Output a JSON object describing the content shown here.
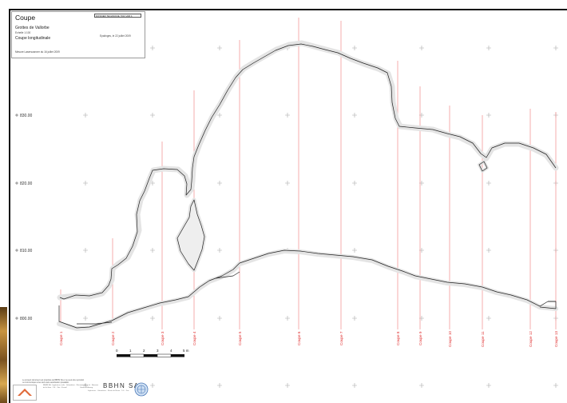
{
  "title_block": {
    "title": "Coupe",
    "site": "Grottes de Vallorbe",
    "scale": "Echelle 1:100",
    "view": "Coupe longitudinale",
    "date": "Epalinges, le 22 juillet 2009",
    "survey": "Mesure Laserscanner du 16 juillet 2009",
    "reference": "DOSSIER TECHNIQUE   7013 VAR 4"
  },
  "elevations": [
    "830.00",
    "820.00",
    "810.00",
    "800.00"
  ],
  "sections": [
    "Coupe 1",
    "Coupe 2",
    "Coupe 3",
    "Coupe 4",
    "Coupe 5",
    "Coupe 6",
    "Coupe 7",
    "Coupe 8",
    "Coupe 9",
    "Coupe 10",
    "Coupe 11",
    "Coupe 12",
    "Coupe 13"
  ],
  "scale_bar": {
    "ticks": [
      "0",
      "1",
      "2",
      "3",
      "4"
    ],
    "last_tick": "5 m"
  },
  "footer": {
    "note": "Le présent document est propriété de BBHN SA et ne peut être reproduit ou communiqué à des tiers sans autorisation préalable.",
    "office_info": "BBHN SA · Ingénieurs civils · Géomètres · Rue de la Gare · Tél. · Fax · E-mail",
    "office_info_b": "www.bbhn.ch · Bureaux Vaud et Fribourg",
    "company": "BBHN SA",
    "company_address": "Ingénieurs · Géomètres · Route de Berne · Tél. · Fax"
  },
  "colors": {
    "cave_outline": "#222222",
    "cave_scan_halo": "#e4e4e4",
    "section_line": "#f08a8a",
    "section_label": "#e03030",
    "grid_cross": "#a8a8a8"
  },
  "icons": [
    "company-logo-icon",
    "certification-emblem-icon"
  ]
}
